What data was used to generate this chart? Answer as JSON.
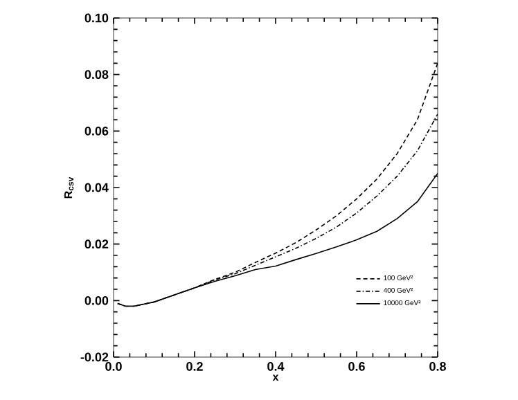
{
  "chart_data": {
    "type": "line",
    "xlabel": "x",
    "ylabel": "R$_{csv}$",
    "x": [
      0.01,
      0.03,
      0.05,
      0.1,
      0.15,
      0.2,
      0.25,
      0.3,
      0.35,
      0.4,
      0.45,
      0.5,
      0.55,
      0.6,
      0.65,
      0.7,
      0.75,
      0.8
    ],
    "series": [
      {
        "name": "100 GeV²",
        "color": "#000000",
        "line_style": "dashed",
        "values": [
          -0.001,
          -0.002,
          -0.002,
          -0.0005,
          0.002,
          0.0045,
          0.0075,
          0.01,
          0.0135,
          0.0168,
          0.0205,
          0.025,
          0.03,
          0.036,
          0.043,
          0.052,
          0.064,
          0.084
        ]
      },
      {
        "name": "400 GeV²",
        "color": "#000000",
        "line_style": "dashdot",
        "values": [
          -0.001,
          -0.002,
          -0.002,
          -0.0005,
          0.002,
          0.0045,
          0.0073,
          0.0095,
          0.0125,
          0.0155,
          0.0185,
          0.022,
          0.026,
          0.031,
          0.037,
          0.044,
          0.053,
          0.066
        ]
      },
      {
        "name": "10000 GeV²",
        "color": "#000000",
        "line_style": "solid",
        "values": [
          -0.001,
          -0.002,
          -0.002,
          -0.0005,
          0.002,
          0.0045,
          0.0068,
          0.0088,
          0.011,
          0.0122,
          0.0145,
          0.0167,
          0.019,
          0.0215,
          0.0245,
          0.029,
          0.035,
          0.045
        ]
      }
    ],
    "xlim": [
      0.0,
      0.8
    ],
    "ylim": [
      -0.02,
      0.1
    ],
    "xticks": [
      {
        "value": 0,
        "label": "0.0"
      },
      0.2,
      0.4,
      0.6,
      0.8
    ],
    "yticks": [
      -0.02,
      {
        "value": 0,
        "label": "0.00"
      },
      0.02,
      0.04,
      0.06,
      0.08,
      {
        "value": 0.1,
        "label": "0.10"
      }
    ],
    "grid": false,
    "legend": "bottom right",
    "marker": "none"
  }
}
